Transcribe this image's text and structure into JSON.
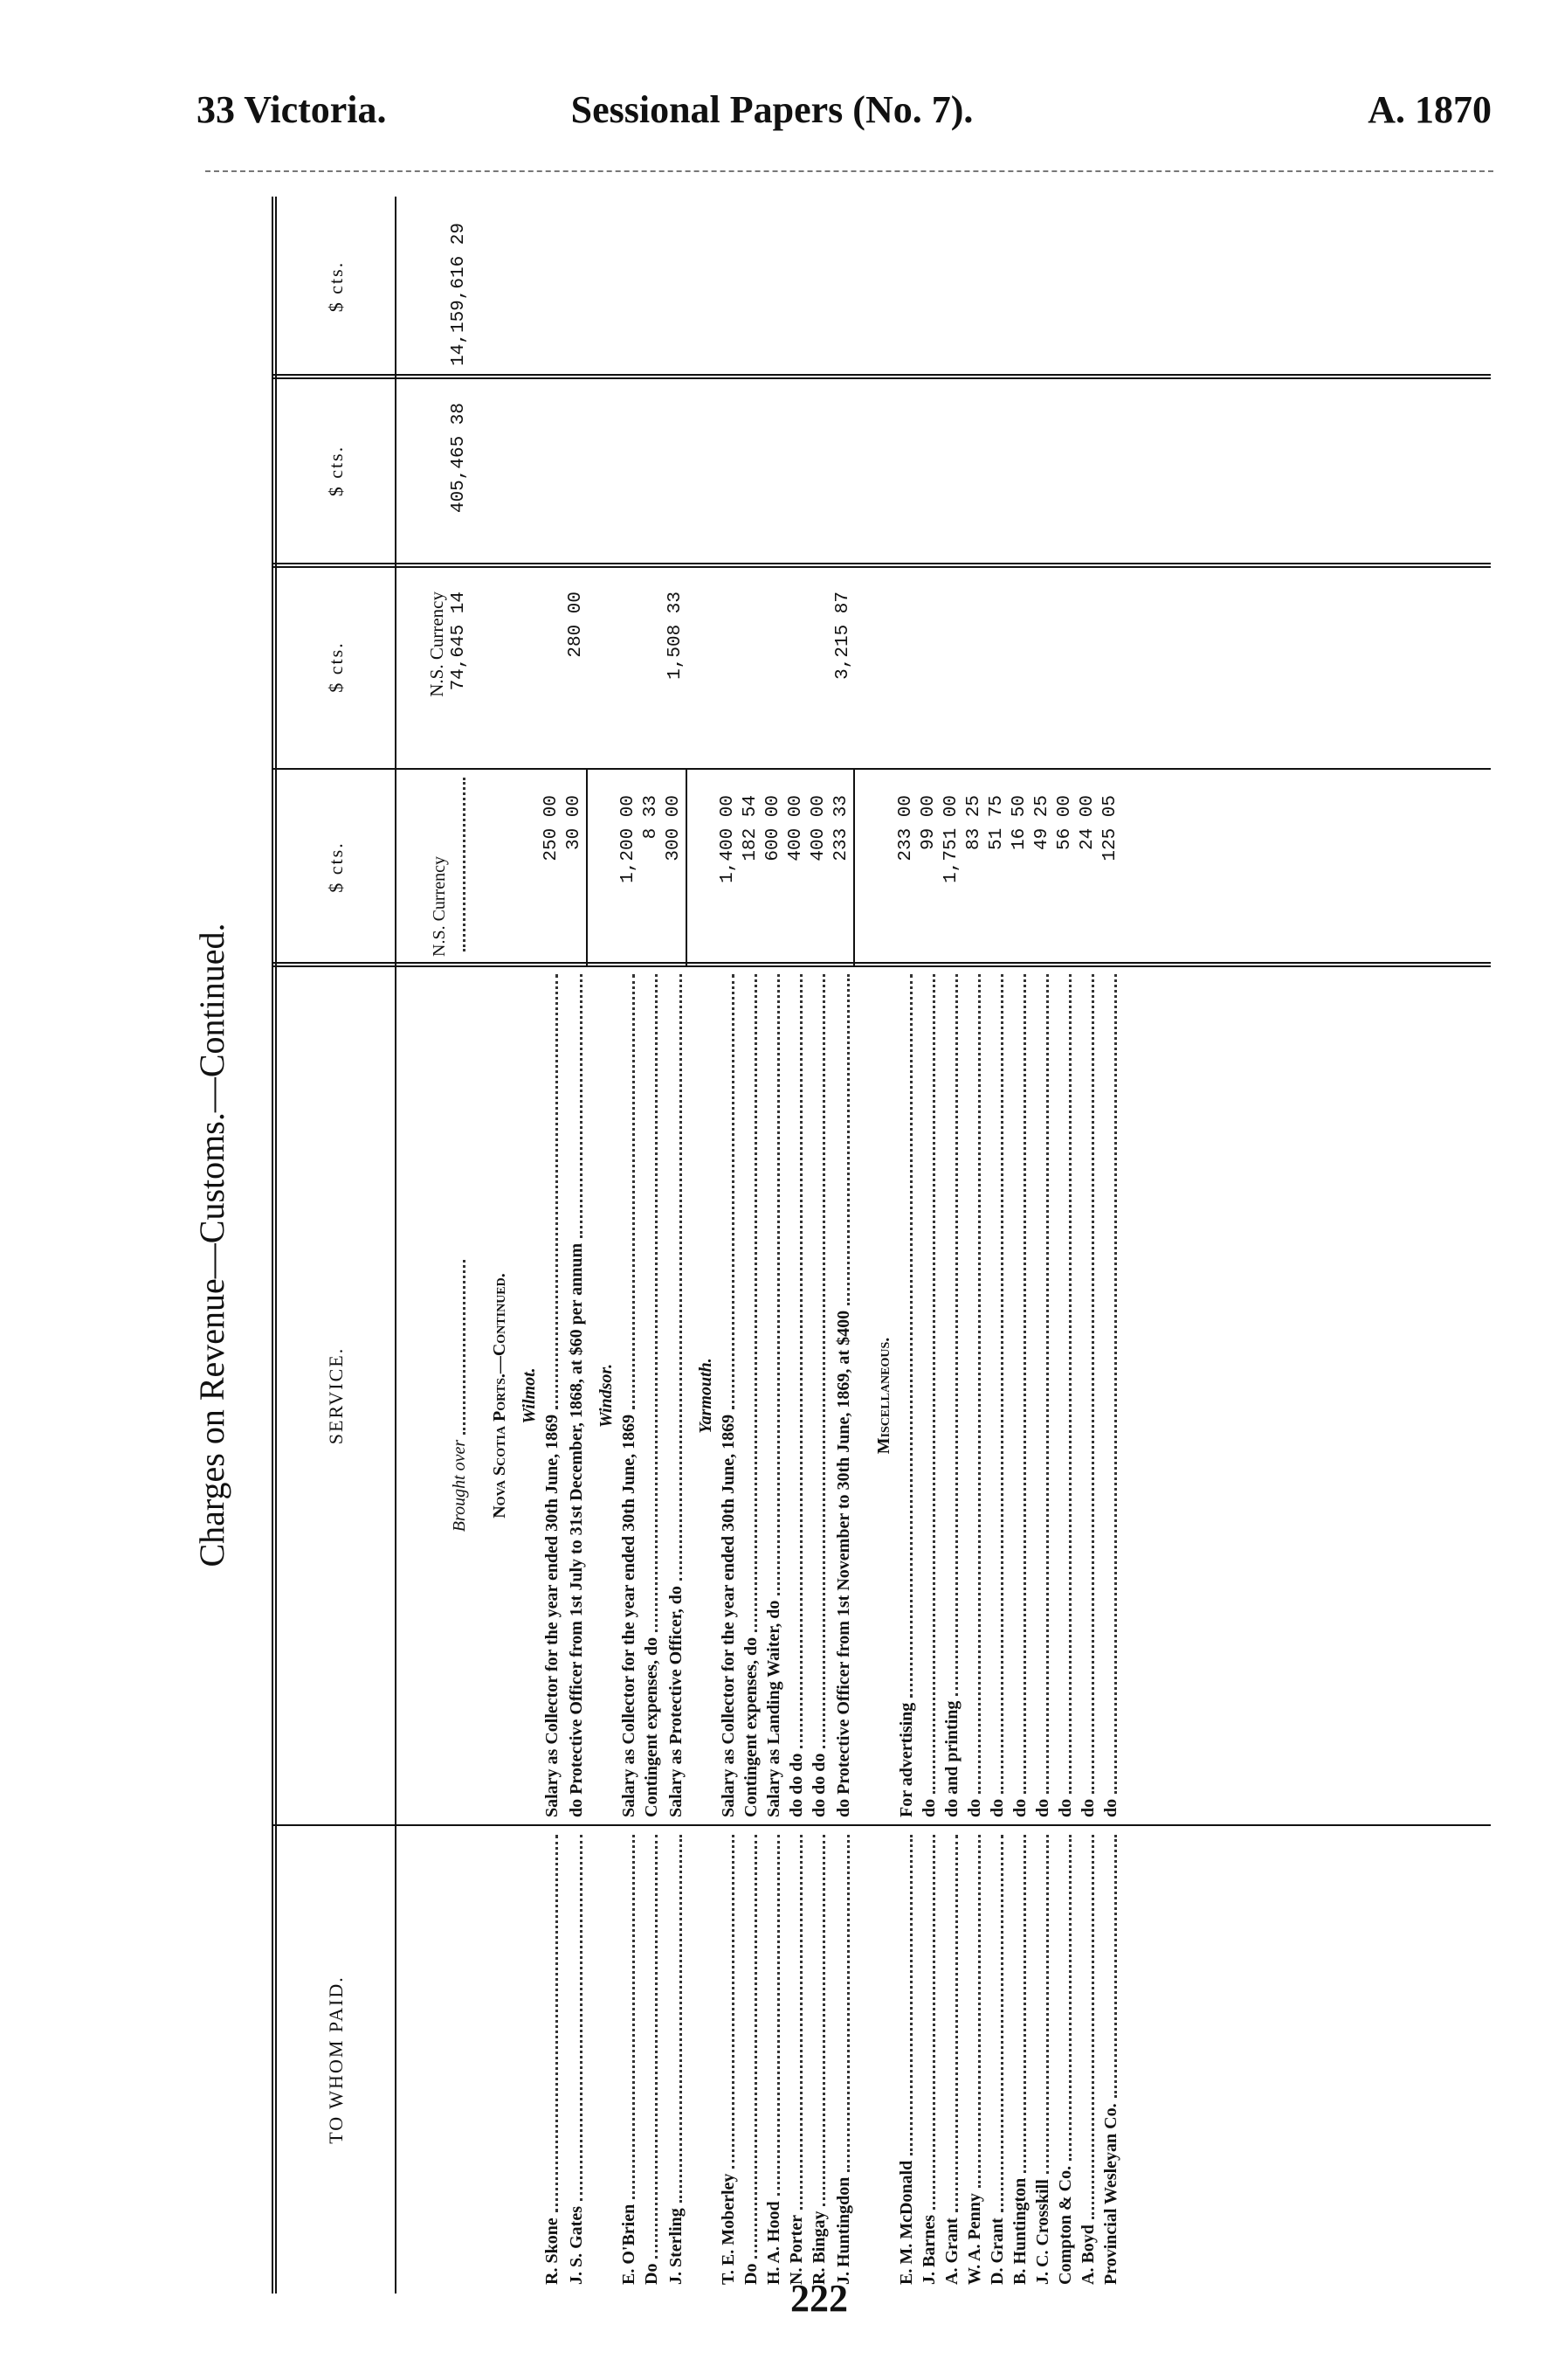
{
  "page_header": {
    "left": "33 Victoria.",
    "center": "Sessional Papers (No. 7).",
    "right": "A. 1870"
  },
  "title": "Charges on Revenue—Customs.—Continued.",
  "columns": [
    "TO WHOM PAID.",
    "SERVICE.",
    "$ cts.",
    "$ cts.",
    "$ cts.",
    "$ cts."
  ],
  "brought_over": {
    "service": "Brought over",
    "col1": "N.S. Currency",
    "col2_note": "N.S. Currency",
    "col2": "74,645 14",
    "col3": "405,465 38",
    "col4": "14,159,616 29"
  },
  "rows": [
    {
      "heading": "Nova Scotia Ports.—Continued."
    },
    {
      "subheading": "Wilmot."
    },
    {
      "payee": "R. Skone",
      "service": "Salary as Collector for the year ended 30th June, 1869",
      "amount": "250 00"
    },
    {
      "payee": "J. S. Gates",
      "service": "do Protective Officer from 1st July to 31st December, 1868, at $60 per annum",
      "amount": "30 00",
      "total": "280 00"
    },
    {
      "subheading": "Windsor."
    },
    {
      "payee": "E. O'Brien",
      "service": "Salary as Collector for the year ended 30th June, 1869",
      "amount": "1,200 00"
    },
    {
      "payee": "Do",
      "service": "Contingent expenses, do",
      "amount": "8 33"
    },
    {
      "payee": "J. Sterling",
      "service": "Salary as Protective Officer, do",
      "amount": "300 00",
      "total": "1,508 33"
    },
    {
      "subheading": "Yarmouth."
    },
    {
      "payee": "T. E. Moberley",
      "service": "Salary as Collector for the year ended 30th June, 1869",
      "amount": "1,400 00"
    },
    {
      "payee": "Do",
      "service": "Contingent expenses, do",
      "amount": "182 54"
    },
    {
      "payee": "H. A. Hood",
      "service": "Salary as Landing Waiter, do",
      "amount": "600 00"
    },
    {
      "payee": "N. Porter",
      "service": "do do do",
      "amount": "400 00"
    },
    {
      "payee": "R. Bingay",
      "service": "do do do",
      "amount": "400 00"
    },
    {
      "payee": "J. Huntingdon",
      "service": "do Protective Officer from 1st November to 30th June, 1869, at $400",
      "amount": "233 33",
      "total": "3,215 87"
    },
    {
      "heading": "Miscellaneous."
    },
    {
      "payee": "E. M. McDonald",
      "service": "For advertising",
      "amount": "233 00"
    },
    {
      "payee": "J. Barnes",
      "service": "do",
      "amount": "99 00"
    },
    {
      "payee": "A. Grant",
      "service": "do and printing",
      "amount": "1,751 00"
    },
    {
      "payee": "W. A. Penny",
      "service": "do",
      "amount": "83 25"
    },
    {
      "payee": "D. Grant",
      "service": "do",
      "amount": "51 75"
    },
    {
      "payee": "B. Huntington",
      "service": "do",
      "amount": "16 50"
    },
    {
      "payee": "J. C. Crosskill",
      "service": "do",
      "amount": "49 25"
    },
    {
      "payee": "Compton & Co.",
      "service": "do",
      "amount": "56 00"
    },
    {
      "payee": "A. Boyd",
      "service": "do",
      "amount": "24 00"
    },
    {
      "payee": "Provincial Wesleyan Co.",
      "service": "do",
      "amount": "125 05"
    }
  ],
  "page_number": "222"
}
